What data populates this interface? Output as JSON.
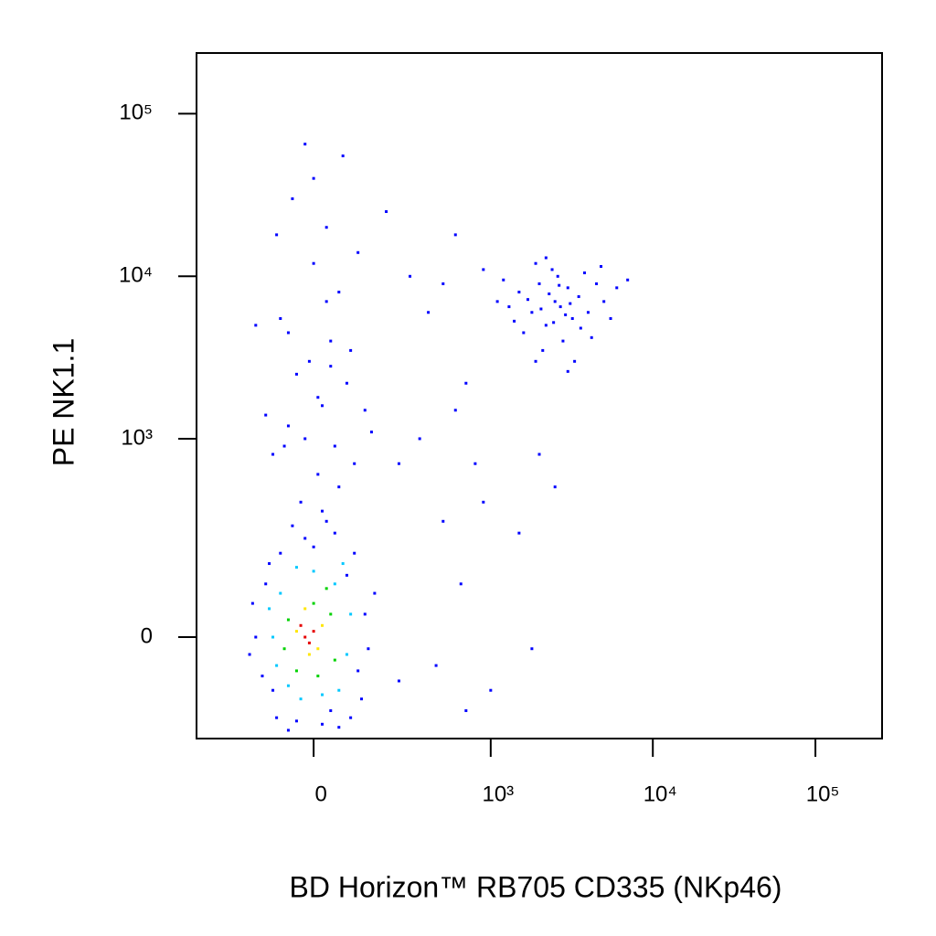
{
  "chart_data": {
    "type": "scatter",
    "scale": "biexponential",
    "x_label": "BD Horizon™ RB705 CD335 (NKp46)",
    "y_label": "PE  NK1.1",
    "xlim": [
      -415,
      257000
    ],
    "ylim": [
      -240,
      236000
    ],
    "xticks": [
      0,
      {
        "value": 1000,
        "label": "10³"
      },
      {
        "value": 10000,
        "label": "10⁴"
      },
      {
        "value": 100000,
        "label": "10⁵"
      }
    ],
    "yticks": [
      0,
      {
        "value": 1000,
        "label": "10³"
      },
      {
        "value": 10000,
        "label": "10⁴"
      },
      {
        "value": 100000,
        "label": "10⁵"
      }
    ],
    "series": [
      {
        "color": "#0000ff",
        "x": [
          1500,
          1800,
          2000,
          2200,
          2500,
          2700,
          3000,
          3200,
          3500,
          2400,
          1600,
          1900,
          2800,
          4000,
          4500,
          1300,
          1200,
          2100,
          3300,
          5000,
          6000,
          2600,
          2300,
          2900,
          3800,
          1700,
          2050,
          2450,
          3100,
          3600,
          1400,
          4200,
          1100,
          5500,
          2650,
          7000,
          900,
          3000,
          1900,
          4800,
          2200,
          -30,
          10,
          50,
          -60,
          20,
          80,
          -10,
          40,
          -80,
          60,
          0,
          30,
          -50,
          70,
          -20,
          100,
          -100,
          130,
          -40,
          10,
          90,
          -70,
          60,
          -20,
          150,
          -120,
          30,
          -90,
          110,
          0,
          40,
          -60,
          200,
          -150,
          20,
          600,
          700,
          400,
          500,
          300,
          800,
          500,
          650,
          450,
          250,
          700,
          1000,
          1800,
          2500,
          2000,
          1500,
          900,
          350,
          600,
          250,
          -150,
          -120,
          -100,
          -80,
          -40,
          0,
          40,
          80,
          110,
          130,
          100,
          60,
          -130,
          -110,
          -60,
          20,
          120,
          -160,
          140,
          -20,
          50,
          -90,
          90,
          160,
          -170,
          30,
          -50
        ],
        "y": [
          8000,
          6000,
          9000,
          5000,
          7000,
          6500,
          8500,
          5500,
          7500,
          11000,
          4500,
          12000,
          4000,
          6000,
          9000,
          6500,
          9500,
          3500,
          3000,
          7000,
          8500,
          10000,
          7800,
          5800,
          10500,
          7200,
          6300,
          5200,
          6800,
          4800,
          5300,
          4200,
          7000,
          5500,
          8800,
          9500,
          11000,
          2600,
          3000,
          11500,
          13000,
          400,
          600,
          900,
          1200,
          1600,
          2200,
          3000,
          4000,
          5500,
          8000,
          12000,
          20000,
          30000,
          55000,
          65000,
          700,
          800,
          1500,
          2500,
          1800,
          3500,
          900,
          500,
          1000,
          1100,
          1400,
          7000,
          18000,
          14000,
          40000,
          2800,
          4500,
          25000,
          5000,
          350,
          1500,
          2200,
          6000,
          9000,
          10000,
          700,
          300,
          100,
          -50,
          700,
          -150,
          -100,
          -20,
          500,
          800,
          250,
          400,
          1000,
          18000,
          -80,
          0,
          100,
          -100,
          180,
          -180,
          200,
          -150,
          120,
          -60,
          40,
          180,
          -200,
          -70,
          150,
          -210,
          -190,
          -120,
          60,
          -20,
          230,
          250,
          -170,
          -170,
          80,
          -30,
          300,
          280
        ]
      },
      {
        "color": "#00c8ff",
        "x": [
          -100,
          -80,
          -60,
          0,
          50,
          80,
          60,
          -30,
          90,
          -90,
          20,
          -40,
          70,
          -110
        ],
        "y": [
          0,
          80,
          -90,
          130,
          100,
          -30,
          -100,
          -120,
          40,
          -50,
          -110,
          140,
          150,
          50
        ]
      },
      {
        "color": "#00d200",
        "x": [
          -60,
          -40,
          0,
          40,
          50,
          10,
          -70,
          30
        ],
        "y": [
          30,
          -60,
          60,
          40,
          -40,
          -70,
          -20,
          90
        ]
      },
      {
        "color": "#ffe600",
        "x": [
          -40,
          -10,
          20,
          -20,
          10
        ],
        "y": [
          10,
          -30,
          20,
          50,
          -20
        ]
      },
      {
        "color": "#e60000",
        "x": [
          -20,
          0,
          -10,
          -30
        ],
        "y": [
          0,
          10,
          -10,
          20
        ]
      }
    ]
  }
}
